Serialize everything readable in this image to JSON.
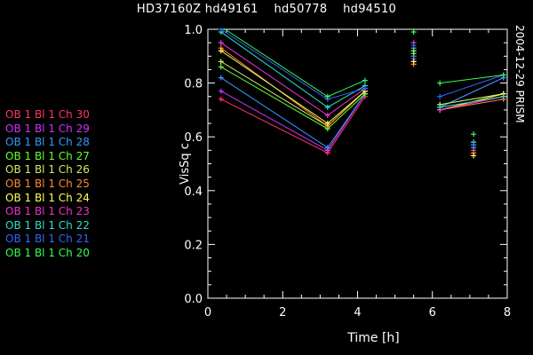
{
  "header": {
    "title": "HD37160Z hd49161    hd50778    hd94510"
  },
  "side_label": "2004-12-29 PRISM",
  "legend": [
    {
      "label": "OB 1 Bl 1 Ch 30",
      "color": "#ff3366"
    },
    {
      "label": "OB 1 Bl 1 Ch 29",
      "color": "#cc33ff"
    },
    {
      "label": "OB 1 Bl 1 Ch 28",
      "color": "#3399ff"
    },
    {
      "label": "OB 1 Bl 1 Ch 27",
      "color": "#66ff33"
    },
    {
      "label": "OB 1 Bl 1 Ch 26",
      "color": "#ccee66"
    },
    {
      "label": "OB 1 Bl 1 Ch 25",
      "color": "#ff8833"
    },
    {
      "label": "OB 1 Bl 1 Ch 24",
      "color": "#ffff55"
    },
    {
      "label": "OB 1 Bl 1 Ch 23",
      "color": "#ee33cc"
    },
    {
      "label": "OB 1 Bl 1 Ch 22",
      "color": "#33ddcc"
    },
    {
      "label": "OB 1 Bl 1 Ch 21",
      "color": "#3366ff"
    },
    {
      "label": "OB 1 Bl 1 Ch 20",
      "color": "#33ff55"
    }
  ],
  "chart_data": {
    "type": "line",
    "xlabel": "Time [h]",
    "ylabel": "VisSq c",
    "xlim": [
      0,
      8
    ],
    "ylim": [
      0,
      1.0
    ],
    "xticks": [
      "0",
      "2",
      "4",
      "6",
      "8"
    ],
    "yticks": [
      "0.0",
      "0.2",
      "0.4",
      "0.6",
      "0.8",
      "1.0"
    ],
    "segments": [
      [
        0.35,
        3.2,
        4.2
      ],
      [
        6.2,
        7.9
      ]
    ],
    "isolated_x": [
      5.5,
      7.1
    ],
    "series": [
      {
        "name": "OB 1 Bl 1 Ch 30",
        "color": "#ff3366",
        "seg1": [
          0.74,
          0.54,
          0.75
        ],
        "iso1": 0.88,
        "seg2": [
          0.7,
          0.75
        ],
        "iso2": 0.55
      },
      {
        "name": "OB 1 Bl 1 Ch 29",
        "color": "#cc33ff",
        "seg1": [
          0.77,
          0.55,
          0.76
        ],
        "iso1": 0.89,
        "seg2": [
          0.71,
          0.82
        ],
        "iso2": 0.56
      },
      {
        "name": "OB 1 Bl 1 Ch 28",
        "color": "#3399ff",
        "seg1": [
          0.82,
          0.56,
          0.76
        ],
        "iso1": 0.9,
        "seg2": [
          0.71,
          0.82
        ],
        "iso2": 0.56
      },
      {
        "name": "OB 1 Bl 1 Ch 27",
        "color": "#66ff33",
        "seg1": [
          0.86,
          0.63,
          0.76
        ],
        "iso1": 0.91,
        "seg2": [
          0.72,
          0.76
        ],
        "iso2": 0.57
      },
      {
        "name": "OB 1 Bl 1 Ch 26",
        "color": "#ccee66",
        "seg1": [
          0.88,
          0.64,
          0.77
        ],
        "iso1": 0.92,
        "seg2": [
          0.72,
          0.76
        ],
        "iso2": 0.57
      },
      {
        "name": "OB 1 Bl 1 Ch 25",
        "color": "#ff8833",
        "seg1": [
          0.93,
          0.64,
          0.77
        ],
        "iso1": 0.87,
        "seg2": [
          0.7,
          0.74
        ],
        "iso2": 0.54
      },
      {
        "name": "OB 1 Bl 1 Ch 24",
        "color": "#ffff55",
        "seg1": [
          0.92,
          0.65,
          0.77
        ],
        "iso1": 0.88,
        "seg2": [
          0.7,
          0.76
        ],
        "iso2": 0.53
      },
      {
        "name": "OB 1 Bl 1 Ch 23",
        "color": "#ee33cc",
        "seg1": [
          0.95,
          0.68,
          0.78
        ],
        "iso1": 0.95,
        "seg2": [
          0.7,
          0.75
        ],
        "iso2": 0.58
      },
      {
        "name": "OB 1 Bl 1 Ch 22",
        "color": "#33ddcc",
        "seg1": [
          0.99,
          0.71,
          0.79
        ],
        "iso1": 0.93,
        "seg2": [
          0.71,
          0.75
        ],
        "iso2": 0.58
      },
      {
        "name": "OB 1 Bl 1 Ch 21",
        "color": "#3366ff",
        "seg1": [
          1.0,
          0.74,
          0.78
        ],
        "iso1": 0.94,
        "seg2": [
          0.75,
          0.83
        ],
        "iso2": 0.57
      },
      {
        "name": "OB 1 Bl 1 Ch 20",
        "color": "#33ff55",
        "seg1": [
          1.01,
          0.75,
          0.81
        ],
        "iso1": 0.99,
        "seg2": [
          0.8,
          0.83
        ],
        "iso2": 0.61
      }
    ]
  }
}
